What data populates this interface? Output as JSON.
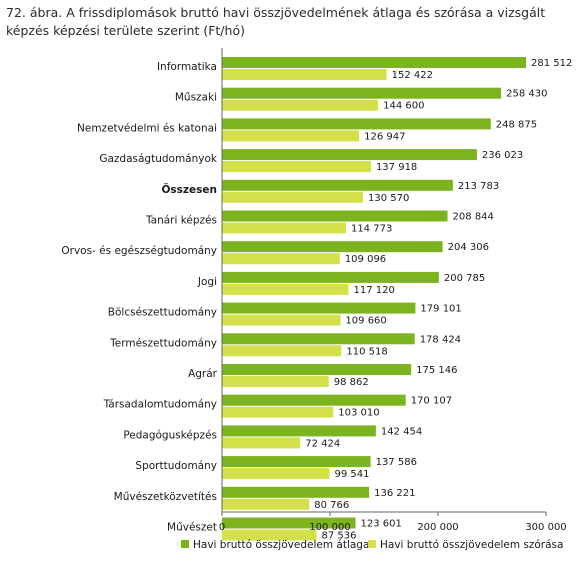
{
  "title": "72. ábra. A frissdiplomások bruttó havi összjövedelmének átlaga és szórása a vizsgált képzés képzési területe szerint (Ft/hó)",
  "chart_data": {
    "type": "bar",
    "orientation": "horizontal",
    "title": "72. ábra. A frissdiplomások bruttó havi összjövedelmének átlaga és szórása a vizsgált képzés képzési területe szerint (Ft/hó)",
    "categories": [
      "Informatika",
      "Műszaki",
      "Nemzetvédelmi és katonai",
      "Gazdaságtudományok",
      "Összesen",
      "Tanári képzés",
      "Orvos- és egészségtudomány",
      "Jogi",
      "Bölcsészettudomány",
      "Természettudomány",
      "Agrár",
      "Társadalomtudomány",
      "Pedagógusképzés",
      "Sporttudomány",
      "Művészetközvetítés",
      "Művészet"
    ],
    "bold_categories": [
      "Összesen"
    ],
    "series": [
      {
        "name": "Havi bruttó összjövedelem átlaga",
        "color": "#7cb41f",
        "values": [
          281512,
          258430,
          248875,
          236023,
          213783,
          208844,
          204306,
          200785,
          179101,
          178424,
          175146,
          170107,
          142454,
          137586,
          136221,
          123601
        ],
        "labels": [
          "281 512",
          "258 430",
          "248 875",
          "236 023",
          "213 783",
          "208 844",
          "204 306",
          "200 785",
          "179 101",
          "178 424",
          "175 146",
          "170 107",
          "142 454",
          "137 586",
          "136 221",
          "123 601"
        ]
      },
      {
        "name": "Havi bruttó összjövedelem szórása",
        "color": "#d4e04a",
        "values": [
          152422,
          144600,
          126947,
          137918,
          130570,
          114773,
          109096,
          117120,
          109660,
          110518,
          98862,
          103010,
          72424,
          99541,
          80766,
          87536
        ],
        "labels": [
          "152 422",
          "144 600",
          "126 947",
          "137 918",
          "130 570",
          "114 773",
          "109 096",
          "117 120",
          "109 660",
          "110 518",
          "98 862",
          "103 010",
          "72 424",
          "99 541",
          "80 766",
          "87 536"
        ]
      }
    ],
    "xlim": [
      0,
      300000
    ],
    "xticks": [
      0,
      100000,
      200000,
      300000
    ],
    "xtick_labels": [
      "0",
      "100 000",
      "200 000",
      "300 000"
    ],
    "grid": false,
    "legend": "bottom"
  }
}
